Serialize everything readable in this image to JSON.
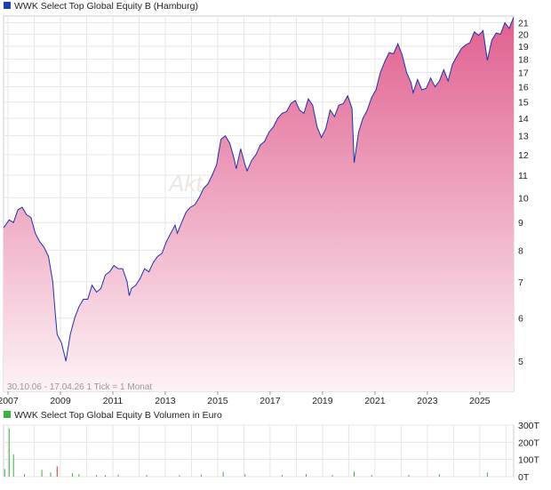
{
  "price_chart": {
    "legend": "WWK Select Top Global Equity B (Hamburg)",
    "legend_color": "#1c3fa8",
    "line_color": "#2030a8",
    "fill_top_color": "#e06090",
    "fill_bottom_color": "#fdf2f6",
    "grid": true,
    "info": "30.10.06 - 17.04.26   1 Tick = 1 Monat",
    "watermark": "Akt",
    "x_tick_labels": [
      "2007",
      "2009",
      "2011",
      "2013",
      "2015",
      "2017",
      "2019",
      "2021",
      "2023",
      "2025"
    ],
    "y_tick_labels": [
      "5",
      "6",
      "7",
      "8",
      "9",
      "10",
      "11",
      "12",
      "13",
      "14",
      "15",
      "16",
      "17",
      "18",
      "19",
      "20",
      "21"
    ]
  },
  "volume_chart": {
    "legend": "WWK Select Top Global Equity B Volumen in Euro",
    "legend_color": "#3cb043",
    "y_tick_labels": [
      "300T",
      "200T",
      "100T",
      "0T"
    ]
  },
  "chart_data": [
    {
      "type": "area",
      "title": "WWK Select Top Global Equity B (Hamburg)",
      "date_range": [
        "2006-10-30",
        "2026-04-17"
      ],
      "y_scale": "log",
      "ylim": [
        4.4,
        21.6
      ],
      "yticks": [
        5,
        6,
        7,
        8,
        9,
        10,
        11,
        12,
        13,
        14,
        15,
        16,
        17,
        18,
        19,
        20,
        21
      ],
      "xticks": [
        "2007",
        "2009",
        "2011",
        "2013",
        "2015",
        "2017",
        "2019",
        "2021",
        "2023",
        "2025"
      ],
      "grid": true,
      "x": [
        "2006-10",
        "2007-01",
        "2007-03",
        "2007-05",
        "2007-07",
        "2007-09",
        "2007-11",
        "2008-01",
        "2008-03",
        "2008-05",
        "2008-07",
        "2008-09",
        "2008-10",
        "2008-11",
        "2009-01",
        "2009-02",
        "2009-03",
        "2009-05",
        "2009-07",
        "2009-09",
        "2009-11",
        "2010-01",
        "2010-03",
        "2010-05",
        "2010-07",
        "2010-09",
        "2010-11",
        "2011-01",
        "2011-03",
        "2011-05",
        "2011-07",
        "2011-08",
        "2011-09",
        "2011-11",
        "2012-01",
        "2012-03",
        "2012-05",
        "2012-07",
        "2012-09",
        "2012-11",
        "2013-01",
        "2013-03",
        "2013-05",
        "2013-06",
        "2013-08",
        "2013-10",
        "2013-12",
        "2014-02",
        "2014-04",
        "2014-06",
        "2014-08",
        "2014-10",
        "2014-12",
        "2015-02",
        "2015-04",
        "2015-06",
        "2015-08",
        "2015-09",
        "2015-11",
        "2016-01",
        "2016-02",
        "2016-04",
        "2016-06",
        "2016-08",
        "2016-10",
        "2016-12",
        "2017-02",
        "2017-04",
        "2017-06",
        "2017-08",
        "2017-10",
        "2017-12",
        "2018-02",
        "2018-04",
        "2018-06",
        "2018-08",
        "2018-10",
        "2018-12",
        "2019-02",
        "2019-04",
        "2019-06",
        "2019-08",
        "2019-10",
        "2019-12",
        "2020-02",
        "2020-03",
        "2020-05",
        "2020-07",
        "2020-09",
        "2020-11",
        "2021-01",
        "2021-03",
        "2021-05",
        "2021-07",
        "2021-09",
        "2021-11",
        "2022-01",
        "2022-03",
        "2022-05",
        "2022-06",
        "2022-08",
        "2022-10",
        "2022-12",
        "2023-02",
        "2023-04",
        "2023-06",
        "2023-08",
        "2023-10",
        "2023-12",
        "2024-02",
        "2024-04",
        "2024-06",
        "2024-08",
        "2024-10",
        "2024-12",
        "2025-02",
        "2025-04",
        "2025-06",
        "2025-08",
        "2025-10",
        "2025-12",
        "2026-02",
        "2026-04"
      ],
      "y": [
        8.8,
        9.1,
        9.0,
        9.5,
        9.6,
        9.3,
        9.2,
        8.6,
        8.3,
        8.1,
        7.8,
        7.0,
        6.2,
        5.6,
        5.4,
        5.2,
        5.0,
        5.6,
        6.0,
        6.3,
        6.5,
        6.5,
        6.9,
        6.7,
        6.8,
        7.2,
        7.3,
        7.5,
        7.4,
        7.4,
        7.0,
        6.6,
        6.8,
        6.9,
        7.1,
        7.4,
        7.3,
        7.6,
        7.8,
        7.9,
        8.3,
        8.6,
        8.9,
        8.6,
        9.0,
        9.4,
        9.6,
        9.7,
        10.0,
        10.4,
        10.6,
        11.0,
        11.5,
        12.8,
        13.0,
        12.6,
        11.8,
        11.3,
        12.3,
        11.5,
        11.2,
        11.7,
        12.0,
        12.5,
        12.7,
        13.2,
        13.5,
        14.0,
        14.3,
        14.4,
        14.9,
        15.1,
        14.5,
        14.3,
        15.2,
        14.8,
        13.5,
        12.9,
        13.4,
        14.5,
        14.1,
        14.8,
        14.9,
        15.4,
        14.6,
        11.6,
        13.2,
        14.0,
        14.5,
        15.3,
        15.8,
        17.0,
        17.8,
        18.5,
        18.4,
        19.2,
        18.3,
        17.0,
        16.3,
        15.6,
        16.5,
        15.8,
        15.9,
        16.6,
        16.0,
        16.4,
        17.2,
        16.4,
        17.6,
        18.2,
        18.8,
        19.1,
        19.3,
        20.2,
        19.9,
        20.3,
        17.9,
        19.5,
        20.1,
        20.0,
        21.0,
        20.5,
        21.5
      ]
    },
    {
      "type": "bar",
      "title": "WWK Select Top Global Equity B Volumen in Euro",
      "ylim": [
        0,
        300
      ],
      "yticks": [
        0,
        100,
        200,
        300
      ],
      "unit": "T",
      "x": [
        "2006-11",
        "2007-01",
        "2007-03",
        "2007-08",
        "2008-04",
        "2008-08",
        "2008-11",
        "2009-06",
        "2009-09",
        "2010-05",
        "2010-09",
        "2011-03",
        "2012-04",
        "2013-07",
        "2014-05",
        "2015-03",
        "2016-01",
        "2017-06",
        "2018-05",
        "2019-05",
        "2020-03",
        "2020-11",
        "2022-04",
        "2023-06",
        "2025-04"
      ],
      "values": [
        45,
        280,
        130,
        15,
        40,
        25,
        60,
        20,
        15,
        10,
        8,
        12,
        10,
        8,
        12,
        28,
        15,
        10,
        15,
        10,
        30,
        10,
        10,
        15,
        25
      ],
      "colors": [
        "green",
        "green",
        "green",
        "green",
        "green",
        "green",
        "red",
        "green",
        "green",
        "green",
        "red",
        "green",
        "green",
        "green",
        "green",
        "green",
        "green",
        "green",
        "green",
        "green",
        "green",
        "green",
        "green",
        "green",
        "green"
      ]
    }
  ]
}
